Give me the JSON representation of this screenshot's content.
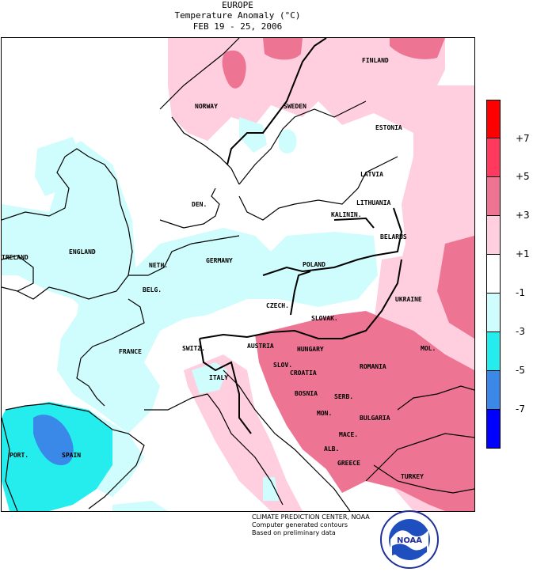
{
  "header": {
    "region": "EUROPE",
    "variable": "Temperature Anomaly (°C)",
    "period": "FEB 19 - 25, 2006"
  },
  "map_labels": {
    "finland": "FINLAND",
    "norway": "NORWAY",
    "sweden": "SWEDEN",
    "estonia": "ESTONIA",
    "latvia": "LATVIA",
    "lithuania": "LITHUANIA",
    "kaliningrad": "KALININ.",
    "belarus": "BELARUS",
    "denmark": "DEN.",
    "ireland": "IRELAND",
    "england": "ENGLAND",
    "netherlands": "NETH.",
    "belgium": "BELG.",
    "germany": "GERMANY",
    "poland": "POLAND",
    "czech": "CZECH.",
    "slovakia": "SLOVAK.",
    "ukraine": "UKRAINE",
    "france": "FRANCE",
    "switzerland": "SWITZ.",
    "austria": "AUSTRIA",
    "hungary": "HUNGARY",
    "slovenia": "SLOV.",
    "moldova": "MOL.",
    "romania": "ROMANIA",
    "croatia": "CROATIA",
    "italy": "ITALY",
    "bosnia": "BOSNIA",
    "serbia": "SERB.",
    "montenegro": "MON.",
    "bulgaria": "BULGARIA",
    "macedonia": "MACE.",
    "albania": "ALB.",
    "greece": "GREECE",
    "turkey": "TURKEY",
    "portugal": "PORT.",
    "spain": "SPAIN"
  },
  "legend": {
    "bins": [
      {
        "color": "#ff0000"
      },
      {
        "color": "#ff3a5e"
      },
      {
        "color": "#ee7494"
      },
      {
        "color": "#ffcfdf"
      },
      {
        "color": "#ffffff"
      },
      {
        "color": "#cffcfc"
      },
      {
        "color": "#25eded"
      },
      {
        "color": "#3a88e8"
      },
      {
        "color": "#0000ff"
      }
    ],
    "ticks": [
      "+7",
      "+5",
      "+3",
      "+1",
      "-1",
      "-3",
      "-5",
      "-7"
    ]
  },
  "credits": {
    "line1": "CLIMATE PREDICTION CENTER, NOAA",
    "line2": "Computer generated contours",
    "line3": "Based on preliminary data"
  },
  "logo": {
    "text": "NOAA"
  }
}
